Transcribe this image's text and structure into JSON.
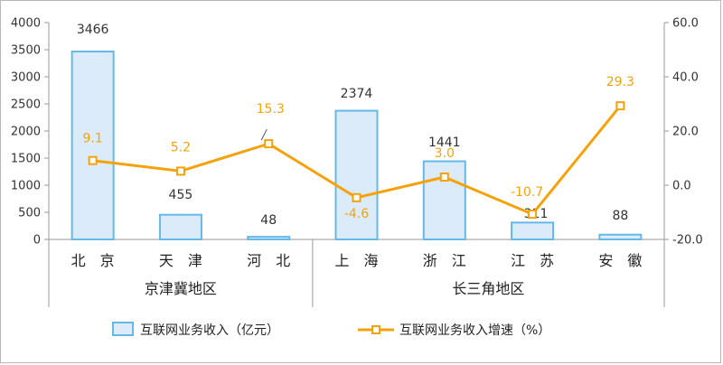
{
  "chart_data": {
    "type": "bar",
    "categories": [
      "北　京",
      "天　津",
      "河　北",
      "上　海",
      "浙　江",
      "江　苏",
      "安　徽"
    ],
    "groups": [
      {
        "label": "京津冀地区",
        "from": 0,
        "to": 2
      },
      {
        "label": "长三角地区",
        "from": 3,
        "to": 6
      }
    ],
    "series": [
      {
        "name": "互联网业务收入（亿元）",
        "type": "bar",
        "axis": "left",
        "values": [
          3466,
          455,
          48,
          2374,
          1441,
          311,
          88
        ],
        "labels": [
          "3466",
          "455",
          "48",
          "2374",
          "1441",
          "311",
          "88"
        ]
      },
      {
        "name": "互联网业务收入增速（%）",
        "type": "line",
        "axis": "right",
        "values": [
          9.1,
          5.2,
          15.3,
          -4.6,
          3.0,
          -10.7,
          29.3
        ],
        "labels": [
          "9.1",
          "5.2",
          "15.3",
          "-4.6",
          "3.0",
          "-10.7",
          "29.3"
        ]
      }
    ],
    "y_left": {
      "min": 0,
      "max": 4000,
      "ticks": [
        "0",
        "500",
        "1000",
        "1500",
        "2000",
        "2500",
        "3000",
        "3500",
        "4000"
      ]
    },
    "y_right": {
      "min": -20,
      "max": 60,
      "ticks": [
        "-20.0",
        "0.0",
        "20.0",
        "40.0",
        "60.0"
      ]
    },
    "legend_position": "bottom",
    "grid": false,
    "colors": {
      "bar_fill": "#dcebf9",
      "bar_stroke": "#66b8e8",
      "line": "#f5a20a",
      "label_line": "#f5a20a",
      "label_bar": "#333333",
      "axis": "#999999"
    }
  }
}
